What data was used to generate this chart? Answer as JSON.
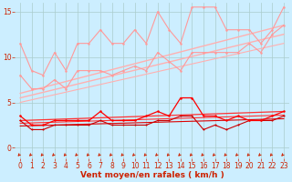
{
  "bg_color": "#cceeff",
  "grid_color": "#aacccc",
  "xlim": [
    -0.5,
    23.5
  ],
  "ylim": [
    -1.2,
    16
  ],
  "yticks": [
    0,
    5,
    10,
    15
  ],
  "xticks": [
    0,
    1,
    2,
    3,
    4,
    5,
    6,
    7,
    8,
    9,
    10,
    11,
    12,
    13,
    14,
    15,
    16,
    17,
    18,
    19,
    20,
    21,
    22,
    23
  ],
  "xlabel": "Vent moyen/en rafales ( km/h )",
  "lines": [
    {
      "x": [
        0,
        1,
        2,
        3,
        4,
        5,
        6,
        7,
        8,
        9,
        10,
        11,
        12,
        13,
        14,
        15,
        16,
        17,
        18,
        19,
        20,
        21,
        22,
        23
      ],
      "y": [
        11.5,
        8.5,
        8.0,
        10.5,
        8.5,
        11.5,
        11.5,
        13.0,
        11.5,
        11.5,
        13.0,
        11.5,
        15.0,
        13.0,
        11.5,
        15.5,
        15.5,
        15.5,
        13.0,
        13.0,
        13.0,
        11.5,
        13.0,
        15.5
      ],
      "color": "#ff9999",
      "lw": 0.8,
      "marker": "o",
      "ms": 1.8,
      "zorder": 3
    },
    {
      "x": [
        0,
        1,
        2,
        3,
        4,
        5,
        6,
        7,
        8,
        9,
        10,
        11,
        12,
        13,
        14,
        15,
        16,
        17,
        18,
        19,
        20,
        21,
        22,
        23
      ],
      "y": [
        8.0,
        6.5,
        6.5,
        7.5,
        6.5,
        8.5,
        8.5,
        8.5,
        8.0,
        8.5,
        9.0,
        8.5,
        10.5,
        9.5,
        8.5,
        10.5,
        10.5,
        10.5,
        10.5,
        10.5,
        11.5,
        10.5,
        12.5,
        13.5
      ],
      "color": "#ff9999",
      "lw": 0.8,
      "marker": "o",
      "ms": 1.8,
      "zorder": 3
    },
    {
      "x": [
        0,
        23
      ],
      "y": [
        6.0,
        13.5
      ],
      "color": "#ffb0b0",
      "lw": 1.0,
      "marker": null,
      "ms": 0,
      "zorder": 2
    },
    {
      "x": [
        0,
        23
      ],
      "y": [
        5.5,
        12.5
      ],
      "color": "#ffb0b0",
      "lw": 1.0,
      "marker": null,
      "ms": 0,
      "zorder": 2
    },
    {
      "x": [
        0,
        23
      ],
      "y": [
        5.0,
        11.5
      ],
      "color": "#ffb0b0",
      "lw": 0.8,
      "marker": null,
      "ms": 0,
      "zorder": 2
    },
    {
      "x": [
        0,
        1,
        2,
        3,
        4,
        5,
        6,
        7,
        8,
        9,
        10,
        11,
        12,
        13,
        14,
        15,
        16,
        17,
        18,
        19,
        20,
        21,
        22,
        23
      ],
      "y": [
        3.5,
        2.5,
        2.5,
        3.0,
        3.0,
        3.0,
        3.0,
        4.0,
        3.0,
        3.0,
        3.0,
        3.5,
        4.0,
        3.5,
        5.5,
        5.5,
        3.5,
        3.5,
        3.0,
        3.5,
        3.0,
        3.0,
        3.5,
        4.0
      ],
      "color": "#ff0000",
      "lw": 0.9,
      "marker": "o",
      "ms": 1.8,
      "zorder": 5
    },
    {
      "x": [
        0,
        1,
        2,
        3,
        4,
        5,
        6,
        7,
        8,
        9,
        10,
        11,
        12,
        13,
        14,
        15,
        16,
        17,
        18,
        19,
        20,
        21,
        22,
        23
      ],
      "y": [
        3.0,
        2.0,
        2.0,
        2.5,
        2.5,
        2.5,
        2.5,
        3.0,
        2.5,
        2.5,
        2.5,
        2.5,
        3.0,
        3.0,
        3.5,
        3.5,
        2.0,
        2.5,
        2.0,
        2.5,
        3.0,
        3.0,
        3.0,
        3.5
      ],
      "color": "#cc0000",
      "lw": 0.8,
      "marker": "o",
      "ms": 1.5,
      "zorder": 4
    },
    {
      "x": [
        0,
        23
      ],
      "y": [
        3.0,
        4.0
      ],
      "color": "#ff3333",
      "lw": 0.9,
      "marker": null,
      "ms": 0,
      "zorder": 3
    },
    {
      "x": [
        0,
        23
      ],
      "y": [
        2.7,
        3.6
      ],
      "color": "#ff3333",
      "lw": 0.8,
      "marker": null,
      "ms": 0,
      "zorder": 3
    },
    {
      "x": [
        0,
        23
      ],
      "y": [
        2.4,
        3.2
      ],
      "color": "#dd0000",
      "lw": 0.8,
      "marker": null,
      "ms": 0,
      "zorder": 3
    }
  ],
  "arrow_color": "#cc2200",
  "tick_label_color": "#cc2200",
  "xlabel_color": "#cc2200",
  "xlabel_fontsize": 6.5,
  "tick_fontsize": 5.5
}
